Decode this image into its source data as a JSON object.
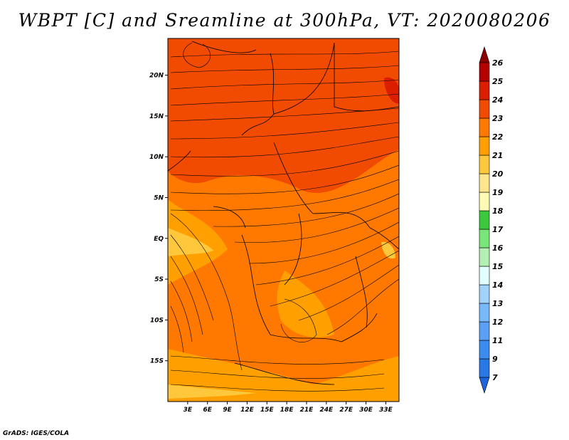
{
  "title": "WBPT [C] and Sreamline at 300hPa, VT: 2020080206",
  "credit": "GrADS: IGES/COLA",
  "map": {
    "lon_range": [
      0,
      35
    ],
    "lat_range": [
      -20,
      24.5
    ],
    "lat_ticks": [
      {
        "value": 20,
        "label": "20N"
      },
      {
        "value": 15,
        "label": "15N"
      },
      {
        "value": 10,
        "label": "10N"
      },
      {
        "value": 5,
        "label": "5N"
      },
      {
        "value": 0,
        "label": "EQ"
      },
      {
        "value": -5,
        "label": "5S"
      },
      {
        "value": -10,
        "label": "10S"
      },
      {
        "value": -15,
        "label": "15S"
      }
    ],
    "lon_ticks": [
      {
        "value": 3,
        "label": "3E"
      },
      {
        "value": 6,
        "label": "6E"
      },
      {
        "value": 9,
        "label": "9E"
      },
      {
        "value": 12,
        "label": "12E"
      },
      {
        "value": 15,
        "label": "15E"
      },
      {
        "value": 18,
        "label": "18E"
      },
      {
        "value": 21,
        "label": "21E"
      },
      {
        "value": 24,
        "label": "24E"
      },
      {
        "value": 27,
        "label": "27E"
      },
      {
        "value": 30,
        "label": "30E"
      },
      {
        "value": 33,
        "label": "33E"
      }
    ]
  },
  "colorbar": {
    "levels": [
      "7",
      "9",
      "11",
      "12",
      "13",
      "14",
      "15",
      "16",
      "17",
      "18",
      "19",
      "20",
      "21",
      "22",
      "23",
      "24",
      "25",
      "26"
    ],
    "colors": [
      "#1e64dc",
      "#2878e6",
      "#3c8cf0",
      "#5aa0f5",
      "#78b9fa",
      "#a0d2fa",
      "#e1ffff",
      "#b4f0b4",
      "#78e678",
      "#3cc83c",
      "#fffab4",
      "#ffe68c",
      "#ffc83c",
      "#ffa000",
      "#ff7800",
      "#f04b00",
      "#dc1e00",
      "#b40000",
      "#8c0000"
    ]
  }
}
